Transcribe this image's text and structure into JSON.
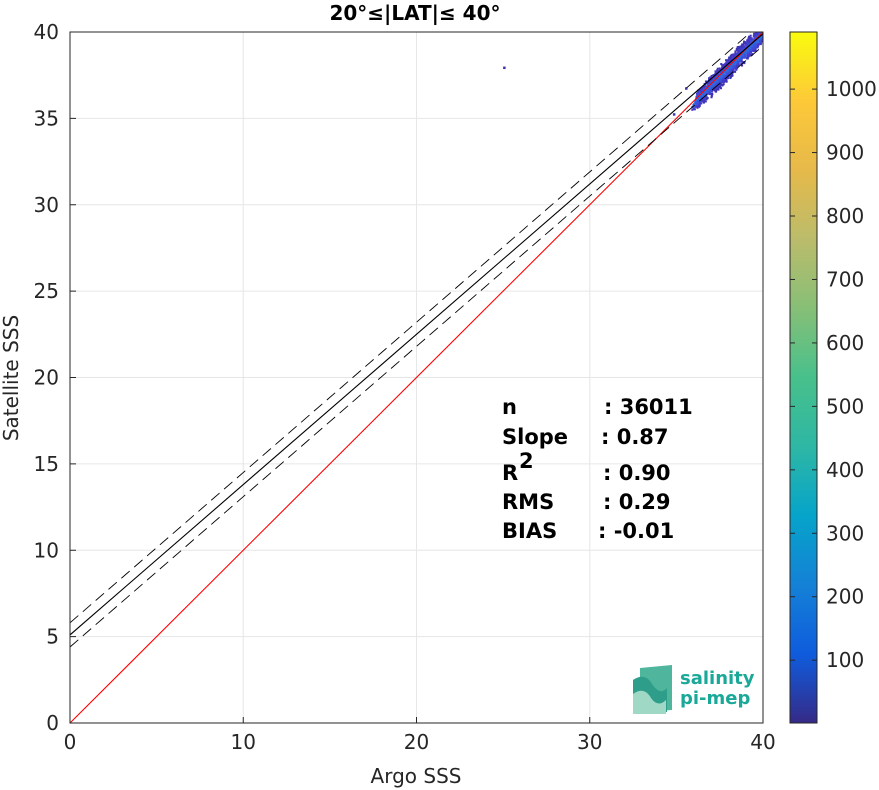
{
  "chart_data": {
    "type": "heatmap",
    "title": "20°≤|LAT|≤ 40°",
    "xlabel": "Argo SSS",
    "ylabel": "Satellite SSS",
    "xlim": [
      0,
      40
    ],
    "ylim": [
      0,
      40
    ],
    "xticks": [
      "0",
      "10",
      "20",
      "30",
      "40"
    ],
    "yticks": [
      "0",
      "5",
      "10",
      "15",
      "20",
      "25",
      "30",
      "35",
      "40"
    ],
    "grid": true,
    "colorbar": {
      "range": [
        1,
        1090
      ],
      "ticks": [
        "100",
        "200",
        "300",
        "400",
        "500",
        "600",
        "700",
        "800",
        "900",
        "1000"
      ],
      "colormap": "parula"
    },
    "lines": [
      {
        "name": "identity",
        "color": "#ff0000",
        "style": "solid",
        "slope": 1.0,
        "intercept": 0.0
      },
      {
        "name": "regression",
        "color": "#000000",
        "style": "solid",
        "slope": 0.87,
        "intercept": 5.1
      },
      {
        "name": "regression-upper",
        "color": "#000000",
        "style": "dashed",
        "slope": 0.87,
        "intercept": 5.8
      },
      {
        "name": "regression-lower",
        "color": "#000000",
        "style": "dashed",
        "slope": 0.87,
        "intercept": 4.4
      }
    ],
    "density_cluster": {
      "x_range": [
        34.5,
        40
      ],
      "y_range": [
        35.5,
        40
      ],
      "center": [
        38,
        38
      ]
    },
    "stats": [
      {
        "label": "n",
        "value": ": 36011"
      },
      {
        "label": "Slope",
        "value": ": 0.87"
      },
      {
        "label": "R",
        "sup": "2",
        "value": ": 0.90"
      },
      {
        "label": "RMS",
        "value": ": 0.29"
      },
      {
        "label": "BIAS",
        "value": ": -0.01"
      }
    ]
  },
  "logo": {
    "line1": "salinity",
    "line2": "pi-mep"
  }
}
